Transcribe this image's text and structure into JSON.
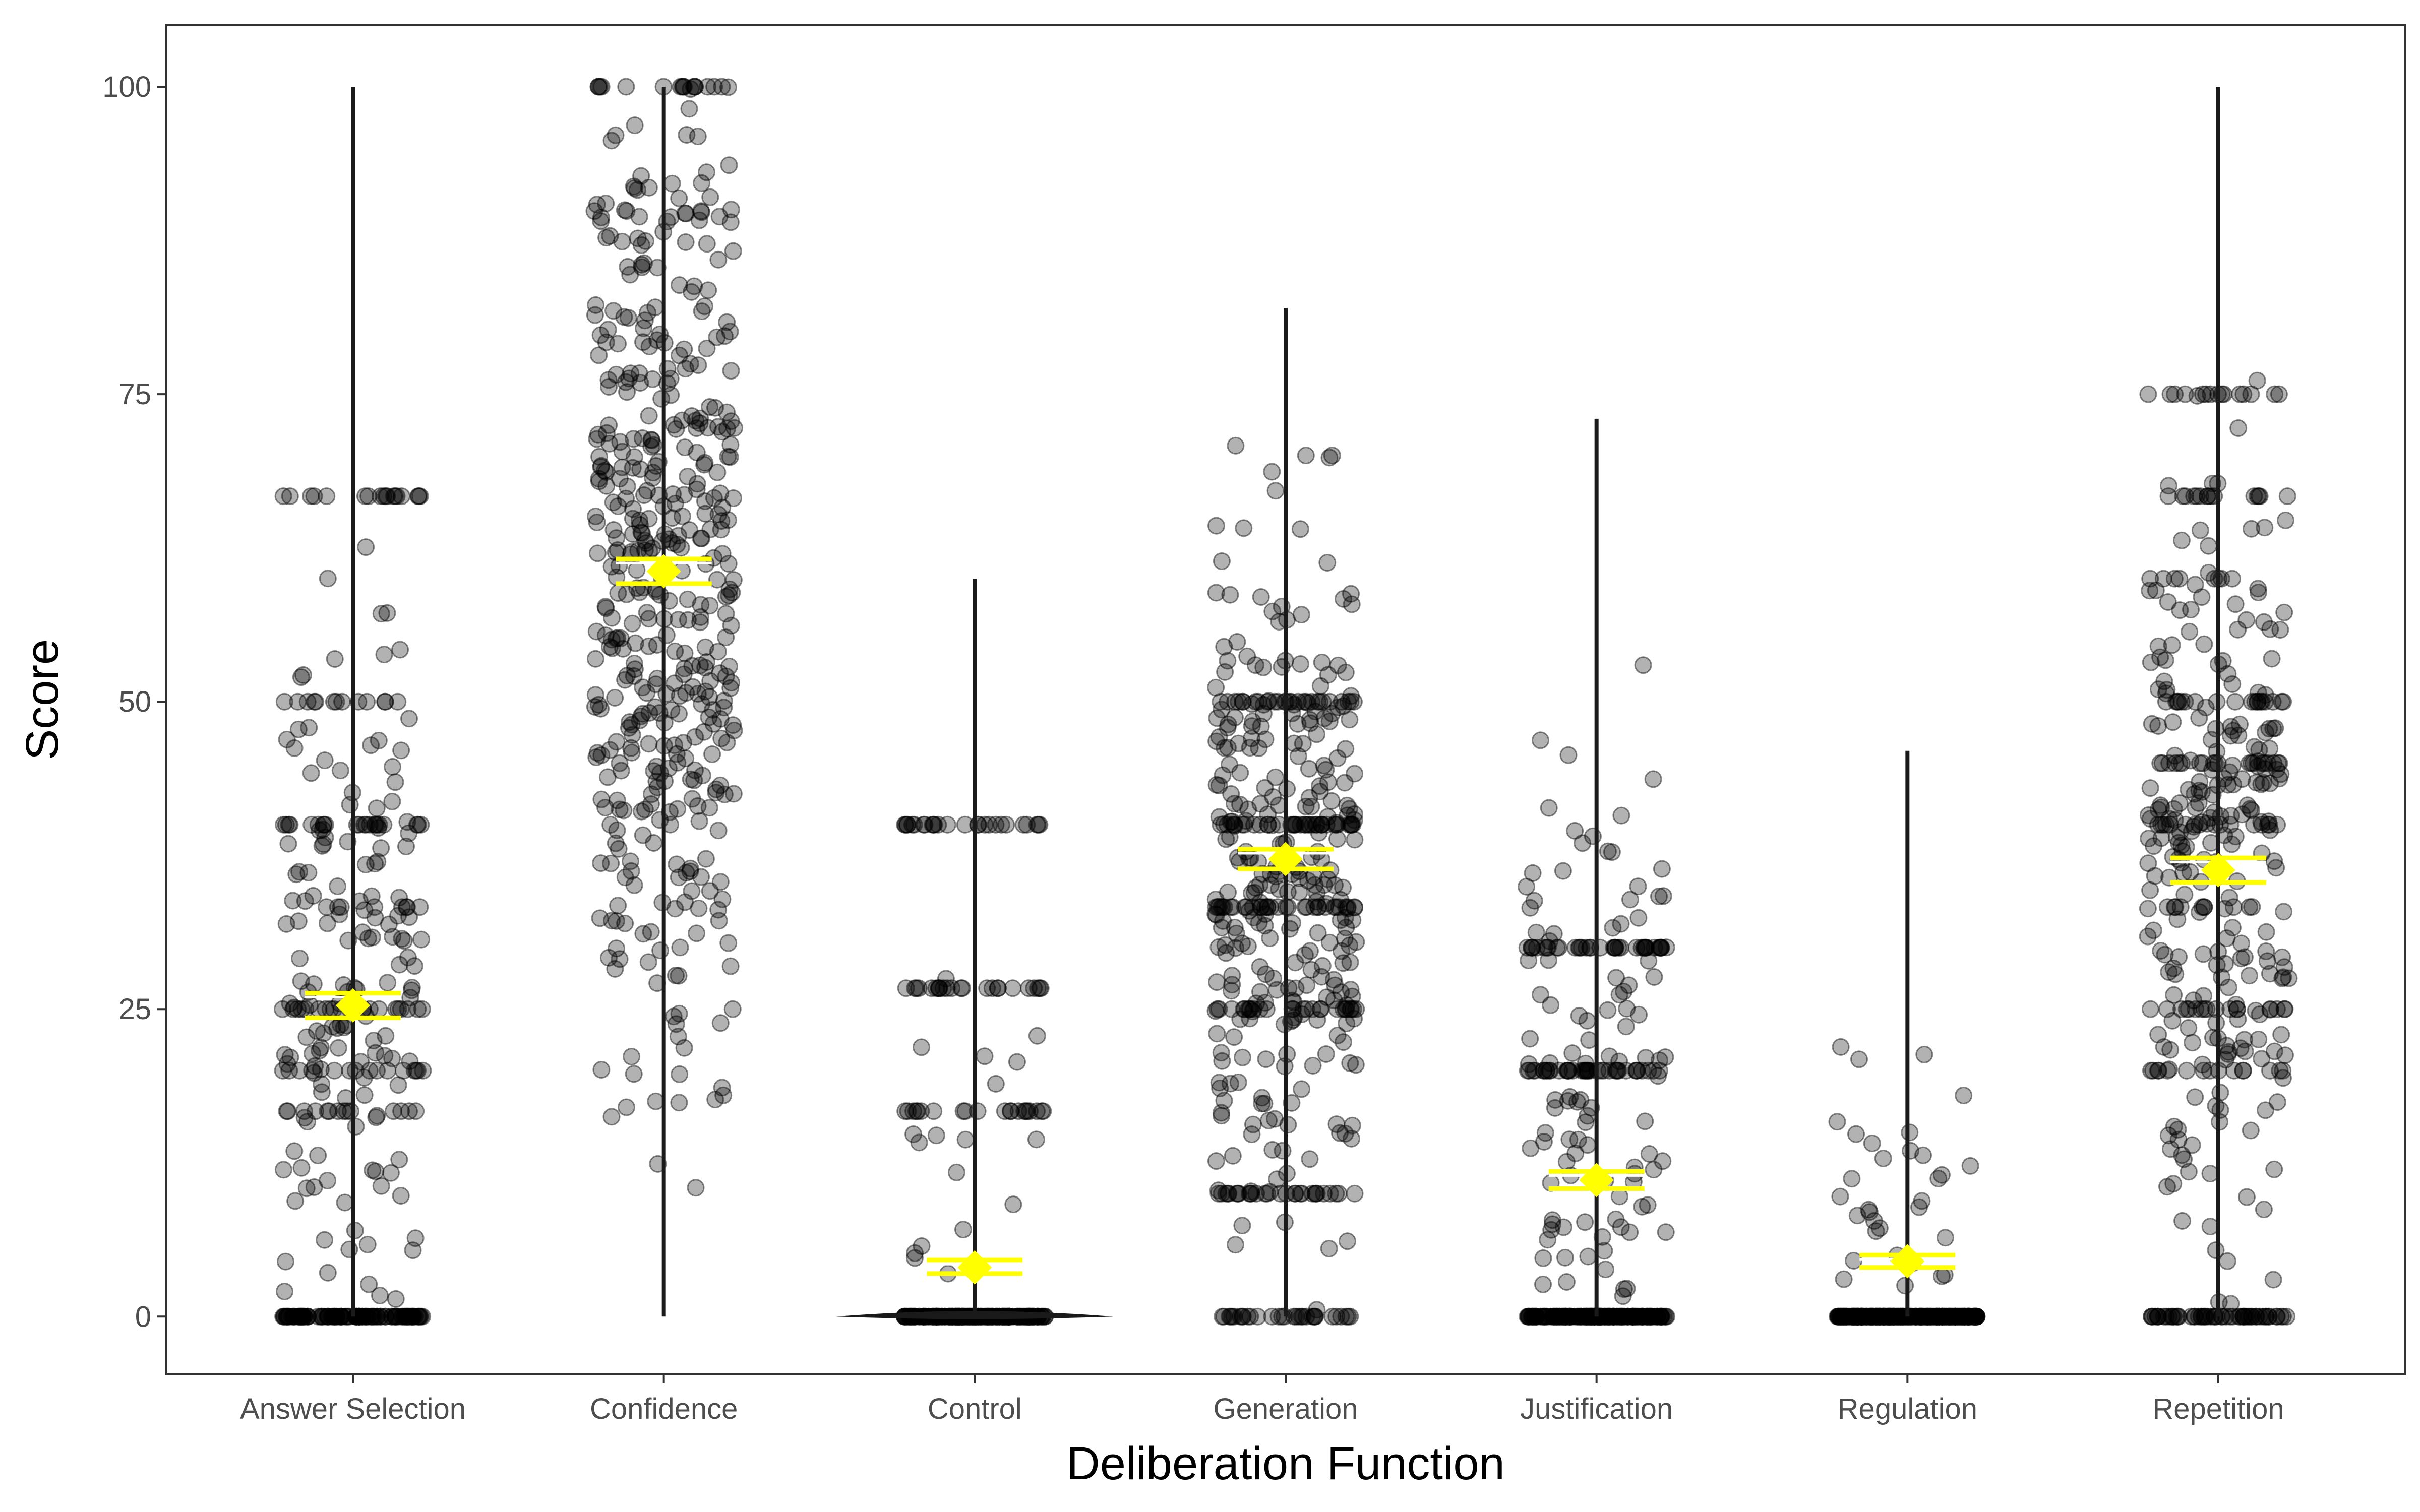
{
  "chart_data": {
    "type": "violin",
    "title": "",
    "xlabel": "Deliberation Function",
    "ylabel": "Score",
    "categories": [
      "Answer Selection",
      "Confidence",
      "Control",
      "Generation",
      "Justification",
      "Regulation",
      "Repetition"
    ],
    "y_ticks": [
      0,
      25,
      50,
      75,
      100
    ],
    "ylim": [
      -4.7,
      105
    ],
    "grid": false,
    "legend": "none",
    "point_color": "#000000",
    "point_alpha": 0.3,
    "mean_marker_color": "#ffff00",
    "means": [
      25.3,
      60.6,
      4.0,
      37.2,
      11.1,
      4.5,
      36.3
    ],
    "mean_ci": [
      [
        24.3,
        26.3
      ],
      [
        59.6,
        61.6
      ],
      [
        3.5,
        4.6
      ],
      [
        36.4,
        38.0
      ],
      [
        10.4,
        11.8
      ],
      [
        4.0,
        5.0
      ],
      [
        35.3,
        37.3
      ]
    ],
    "ranges": [
      [
        0,
        100
      ],
      [
        0,
        100
      ],
      [
        0,
        60
      ],
      [
        0,
        82
      ],
      [
        0,
        73
      ],
      [
        0,
        46
      ],
      [
        0,
        100
      ]
    ]
  }
}
